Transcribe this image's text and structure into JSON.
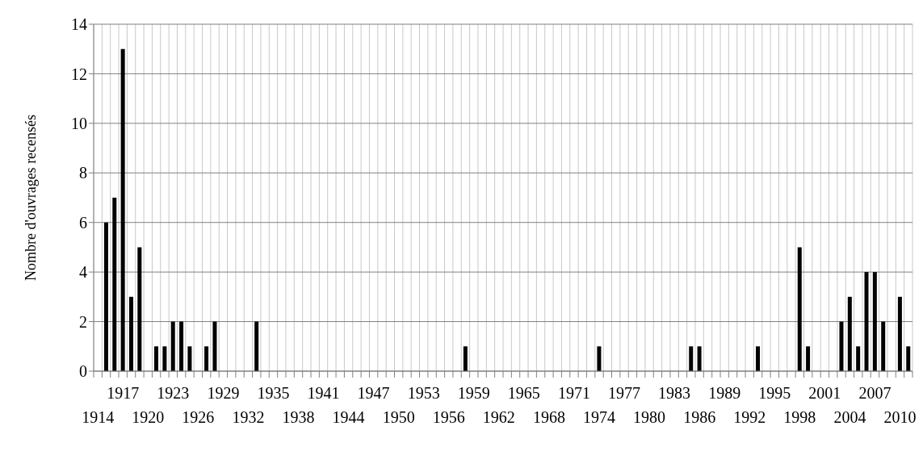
{
  "chart_data": {
    "type": "bar",
    "ylabel": "Nombre d'ouvrages recensés",
    "categories": [
      "1914",
      null,
      null,
      "1917",
      null,
      null,
      "1920",
      null,
      null,
      "1923",
      null,
      null,
      "1926",
      null,
      null,
      "1929",
      null,
      null,
      "1932",
      null,
      null,
      "1935",
      null,
      null,
      "1938",
      null,
      null,
      "1941",
      null,
      null,
      "1944",
      null,
      null,
      "1947",
      null,
      null,
      "1950",
      null,
      null,
      "1953",
      null,
      null,
      "1956",
      null,
      null,
      "1959",
      null,
      null,
      "1962",
      null,
      null,
      "1965",
      null,
      null,
      "1968",
      null,
      null,
      "1971",
      null,
      null,
      "1974",
      null,
      null,
      "1977",
      null,
      null,
      "1980",
      null,
      null,
      "1983",
      null,
      null,
      "1986",
      null,
      null,
      "1989",
      null,
      null,
      "1992",
      null,
      null,
      "1995",
      null,
      null,
      "1998",
      null,
      null,
      "2001",
      null,
      null,
      "2004",
      null,
      null,
      "2007",
      null,
      null,
      "2010",
      null
    ],
    "values": [
      0,
      6,
      7,
      13,
      3,
      5,
      0,
      1,
      1,
      2,
      2,
      1,
      0,
      1,
      2,
      0,
      0,
      0,
      0,
      2,
      0,
      0,
      0,
      0,
      0,
      0,
      0,
      0,
      0,
      0,
      0,
      0,
      0,
      0,
      0,
      0,
      0,
      0,
      0,
      0,
      0,
      0,
      0,
      0,
      1,
      0,
      0,
      0,
      0,
      0,
      0,
      0,
      0,
      0,
      0,
      0,
      0,
      0,
      0,
      0,
      1,
      0,
      0,
      0,
      0,
      0,
      0,
      0,
      0,
      0,
      0,
      1,
      1,
      0,
      0,
      0,
      0,
      0,
      0,
      1,
      0,
      0,
      0,
      0,
      5,
      1,
      0,
      0,
      0,
      2,
      3,
      1,
      4,
      4,
      2,
      0,
      3,
      1
    ],
    "color": "#000000",
    "ylim": [
      0,
      14
    ],
    "yticks": [
      0,
      2,
      4,
      6,
      8,
      10,
      12,
      14
    ],
    "grid": true
  }
}
